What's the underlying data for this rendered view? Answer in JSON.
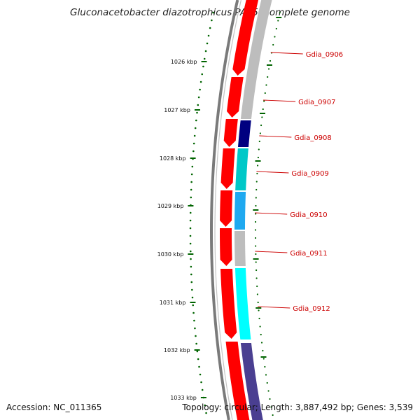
{
  "title": "Gluconacetobacter diazotrophicus PAl 5, complete genome",
  "footer": {
    "accession": "Accession: NC_011365",
    "topology": "Topology: circular; Length: 3,887,492 bp; Genes: 3,539"
  },
  "colors": {
    "backbone": "#7a7a7a",
    "forward_strand": "#ff0000",
    "tick": "#006400",
    "label": "#cc0000",
    "unassigned_category": "#bdbdbd",
    "navy_category": "#000080",
    "teal_category": "#00c8c8",
    "azure_category": "#1fa9f0",
    "cyan_category": "#00ffff",
    "slate_category": "#4a3f91"
  },
  "scale": {
    "unit": "kbp",
    "ticks": [
      "1026 kbp",
      "1027 kbp",
      "1028 kbp",
      "1029 kbp",
      "1030 kbp",
      "1031 kbp",
      "1032 kbp",
      "1033 kbp"
    ]
  },
  "gene_labels": [
    "Gdia_0906",
    "Gdia_0907",
    "Gdia_0908",
    "Gdia_0909",
    "Gdia_0910",
    "Gdia_0911",
    "Gdia_0912"
  ]
}
